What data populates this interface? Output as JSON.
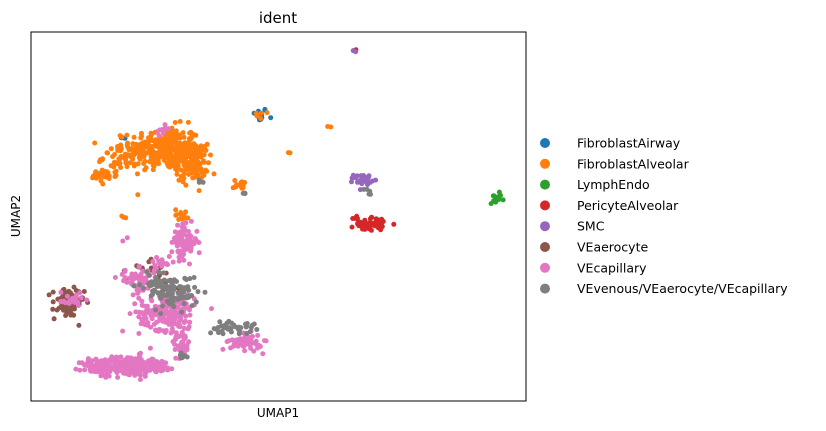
{
  "chart_data": {
    "type": "scatter",
    "title": "ident",
    "xlabel": "UMAP1",
    "ylabel": "UMAP2",
    "xticks": false,
    "yticks": false,
    "grid": false,
    "legend_position": "right-outside",
    "xlim": [
      0,
      100
    ],
    "ylim": [
      0,
      100
    ],
    "series": [
      {
        "name": "FibroblastAirway",
        "color": "#1f77b4",
        "clusters": [
          {
            "x": 46.2,
            "y": 77.5,
            "sx": 0.8,
            "sy": 1.0,
            "n": 14
          },
          {
            "x": 18.5,
            "y": 71.0,
            "sx": 0.4,
            "sy": 0.4,
            "n": 2
          }
        ]
      },
      {
        "name": "FibroblastAlveolar",
        "color": "#ff7f0e",
        "clusters": [
          {
            "x": 27.0,
            "y": 68.5,
            "sx": 3.5,
            "sy": 3.0,
            "n": 280
          },
          {
            "x": 32.5,
            "y": 64.5,
            "sx": 1.6,
            "sy": 2.6,
            "n": 120
          },
          {
            "x": 19.0,
            "y": 66.0,
            "sx": 2.2,
            "sy": 1.6,
            "n": 60
          },
          {
            "x": 14.5,
            "y": 61.0,
            "sx": 1.4,
            "sy": 0.8,
            "n": 35
          },
          {
            "x": 42.5,
            "y": 58.5,
            "sx": 0.8,
            "sy": 0.7,
            "n": 15
          },
          {
            "x": 30.5,
            "y": 50.5,
            "sx": 0.7,
            "sy": 0.8,
            "n": 14
          },
          {
            "x": 46.2,
            "y": 77.5,
            "sx": 0.5,
            "sy": 0.5,
            "n": 6
          },
          {
            "x": 52.0,
            "y": 67.0,
            "sx": 0.3,
            "sy": 0.3,
            "n": 2
          },
          {
            "x": 60.0,
            "y": 74.5,
            "sx": 0.3,
            "sy": 0.3,
            "n": 2
          },
          {
            "x": 18.5,
            "y": 49.5,
            "sx": 0.3,
            "sy": 0.3,
            "n": 3
          }
        ]
      },
      {
        "name": "LymphEndo",
        "color": "#2ca02c",
        "clusters": [
          {
            "x": 94.2,
            "y": 55.0,
            "sx": 0.6,
            "sy": 0.8,
            "n": 14
          }
        ]
      },
      {
        "name": "PericyteAlveolar",
        "color": "#d62728",
        "clusters": [
          {
            "x": 68.5,
            "y": 48.0,
            "sx": 1.6,
            "sy": 0.9,
            "n": 50
          },
          {
            "x": 66.0,
            "y": 49.5,
            "sx": 0.5,
            "sy": 0.5,
            "n": 6
          },
          {
            "x": 65.5,
            "y": 95.0,
            "sx": 0.2,
            "sy": 0.2,
            "n": 2
          }
        ]
      },
      {
        "name": "SMC",
        "color": "#9467bd",
        "clusters": [
          {
            "x": 67.0,
            "y": 60.0,
            "sx": 0.9,
            "sy": 0.7,
            "n": 28
          },
          {
            "x": 65.5,
            "y": 95.0,
            "sx": 0.2,
            "sy": 0.2,
            "n": 2
          }
        ]
      },
      {
        "name": "VEaerocyte",
        "color": "#8c564b",
        "clusters": [
          {
            "x": 7.5,
            "y": 26.5,
            "sx": 1.6,
            "sy": 2.0,
            "n": 90
          },
          {
            "x": 23.5,
            "y": 36.0,
            "sx": 2.0,
            "sy": 1.5,
            "n": 20
          },
          {
            "x": 27.5,
            "y": 31.0,
            "sx": 1.5,
            "sy": 1.5,
            "n": 15
          }
        ]
      },
      {
        "name": "VEcapillary",
        "color": "#e377c2",
        "clusters": [
          {
            "x": 19.5,
            "y": 9.5,
            "sx": 2.8,
            "sy": 1.4,
            "n": 200
          },
          {
            "x": 13.5,
            "y": 9.0,
            "sx": 1.6,
            "sy": 1.2,
            "n": 60
          },
          {
            "x": 25.5,
            "y": 9.5,
            "sx": 1.8,
            "sy": 0.9,
            "n": 50
          },
          {
            "x": 27.5,
            "y": 24.0,
            "sx": 2.8,
            "sy": 2.4,
            "n": 180
          },
          {
            "x": 31.0,
            "y": 43.0,
            "sx": 1.3,
            "sy": 2.2,
            "n": 90
          },
          {
            "x": 21.5,
            "y": 32.5,
            "sx": 2.0,
            "sy": 1.6,
            "n": 60
          },
          {
            "x": 30.5,
            "y": 16.5,
            "sx": 0.9,
            "sy": 2.8,
            "n": 45
          },
          {
            "x": 43.5,
            "y": 16.0,
            "sx": 1.6,
            "sy": 1.1,
            "n": 60
          },
          {
            "x": 7.8,
            "y": 27.5,
            "sx": 1.2,
            "sy": 1.4,
            "n": 20
          },
          {
            "x": 26.5,
            "y": 73.0,
            "sx": 1.0,
            "sy": 0.8,
            "n": 8
          },
          {
            "x": 26.5,
            "y": 37.0,
            "sx": 1.5,
            "sy": 1.2,
            "n": 15
          },
          {
            "x": 19.0,
            "y": 43.5,
            "sx": 0.3,
            "sy": 0.3,
            "n": 2
          }
        ]
      },
      {
        "name": "VEvenous/VEaerocyte/VEcapillary",
        "color": "#7f7f7f",
        "clusters": [
          {
            "x": 29.0,
            "y": 29.5,
            "sx": 2.4,
            "sy": 2.2,
            "n": 90
          },
          {
            "x": 40.5,
            "y": 20.0,
            "sx": 2.4,
            "sy": 0.9,
            "n": 40
          },
          {
            "x": 25.0,
            "y": 31.5,
            "sx": 1.4,
            "sy": 1.4,
            "n": 25
          },
          {
            "x": 34.0,
            "y": 59.5,
            "sx": 0.3,
            "sy": 0.3,
            "n": 3
          },
          {
            "x": 68.0,
            "y": 57.5,
            "sx": 0.4,
            "sy": 0.6,
            "n": 5
          },
          {
            "x": 43.0,
            "y": 56.5,
            "sx": 0.3,
            "sy": 0.3,
            "n": 3
          },
          {
            "x": 30.5,
            "y": 12.5,
            "sx": 0.6,
            "sy": 1.0,
            "n": 8
          }
        ]
      }
    ]
  }
}
